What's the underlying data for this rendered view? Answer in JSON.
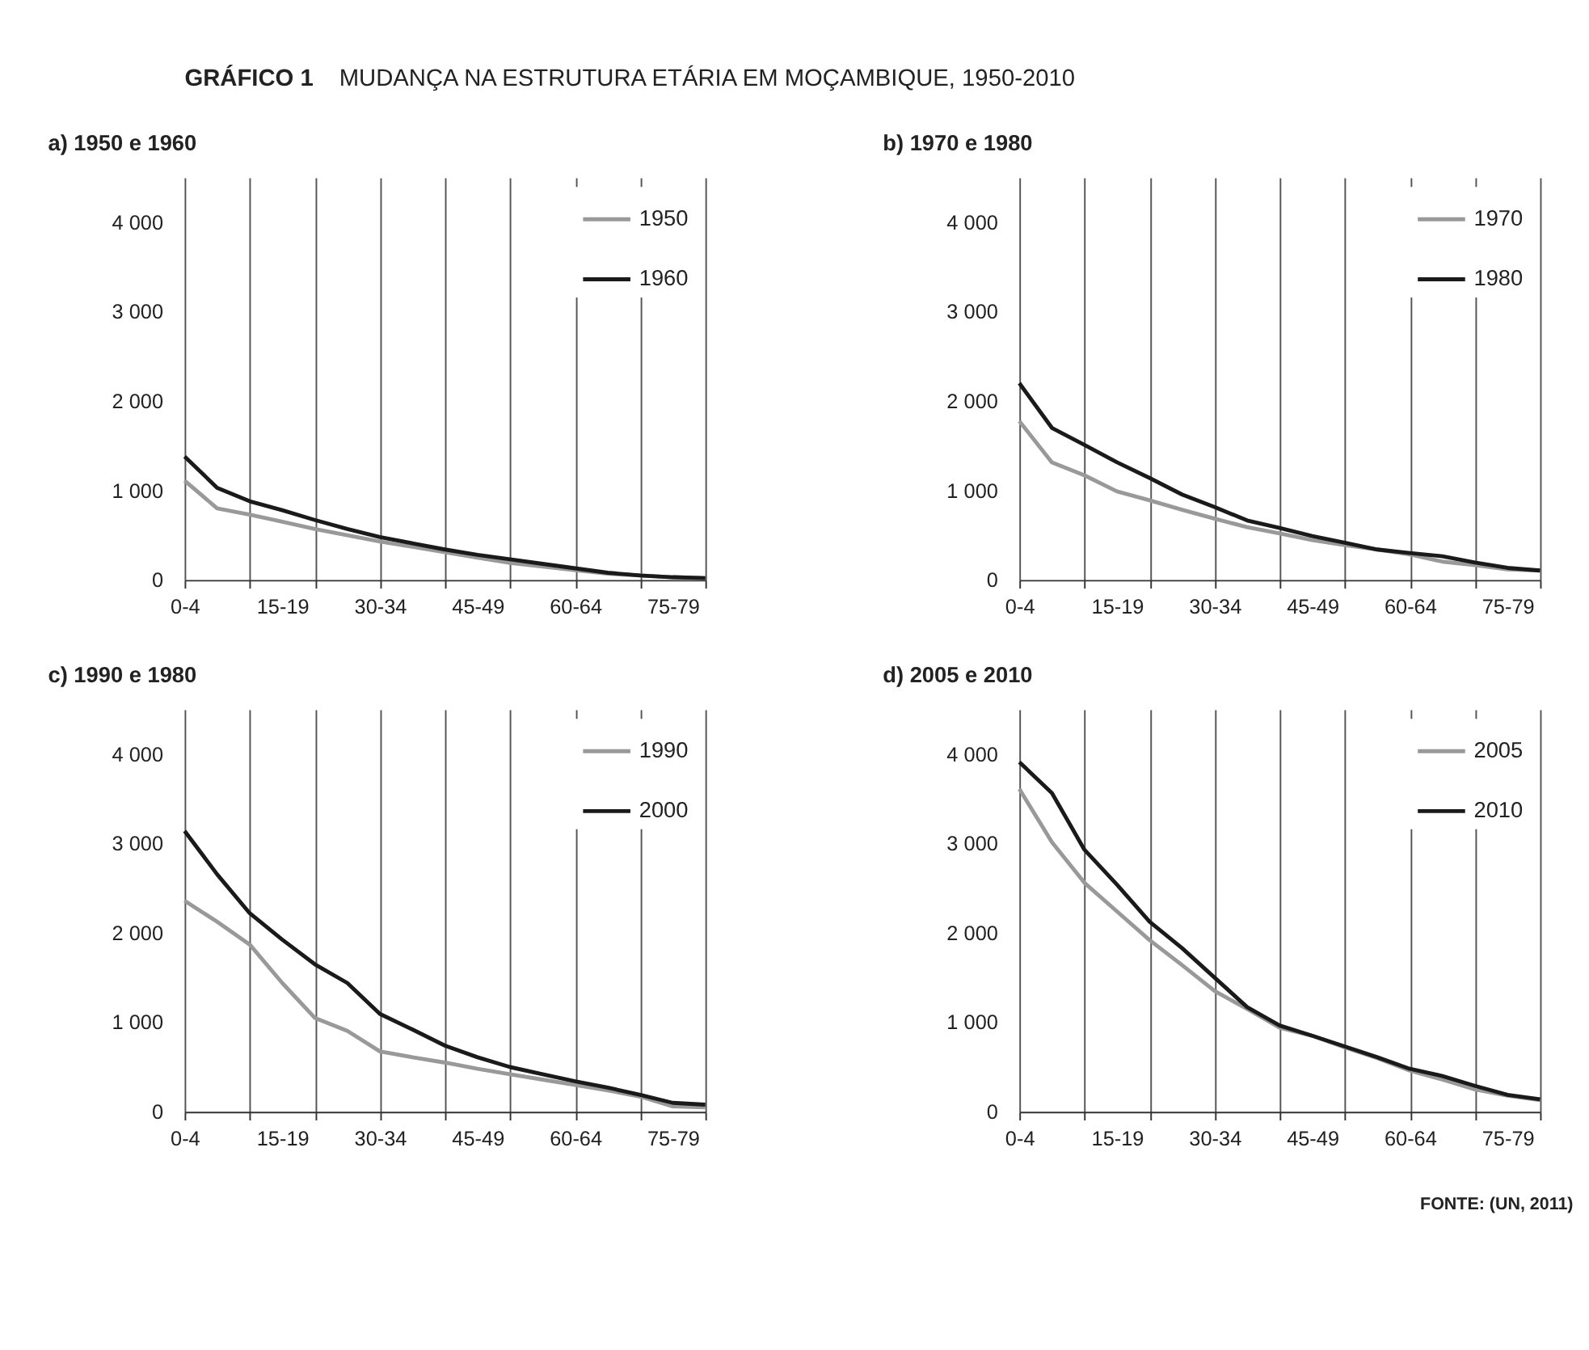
{
  "chart_data": [
    {
      "type": "other",
      "title": "GRÁFICO 1",
      "subtitle": "MUDANÇA NA ESTRUTURA ETÁRIA EM MOÇAMBIQUE, 1950-2010",
      "annotations": [
        "FONTE: (UN, 2011)"
      ]
    },
    {
      "type": "line",
      "title": "a) 1950 e 1960",
      "categories": [
        "0-4",
        null,
        null,
        "15-19",
        null,
        null,
        "30-34",
        null,
        null,
        "45-49",
        null,
        null,
        "60-64",
        null,
        null,
        "75-79",
        null
      ],
      "ylim": [
        0,
        4500
      ],
      "yticks": [
        0,
        {
          "value": 1000,
          "label": "1 000"
        },
        {
          "value": 2000,
          "label": "2 000"
        },
        {
          "value": 3000,
          "label": "3 000"
        },
        {
          "value": 4000,
          "label": "4 000"
        }
      ],
      "grid": "x",
      "legend": "top right",
      "line_style": "solid",
      "series": [
        {
          "name": "1950",
          "color": "#999999",
          "values": [
            1110,
            800,
            730,
            650,
            570,
            500,
            430,
            370,
            310,
            250,
            190,
            150,
            110,
            70,
            50,
            30,
            20
          ]
        },
        {
          "name": "1960",
          "color": "#1a1a1a",
          "values": [
            1380,
            1030,
            880,
            780,
            670,
            570,
            480,
            410,
            340,
            280,
            230,
            180,
            130,
            80,
            50,
            30,
            20
          ]
        }
      ]
    },
    {
      "type": "line",
      "title": "b) 1970 e 1980",
      "categories": [
        "0-4",
        null,
        null,
        "15-19",
        null,
        null,
        "30-34",
        null,
        null,
        "45-49",
        null,
        null,
        "60-64",
        null,
        null,
        "75-79",
        null
      ],
      "ylim": [
        0,
        4500
      ],
      "yticks": [
        0,
        {
          "value": 1000,
          "label": "1 000"
        },
        {
          "value": 2000,
          "label": "2 000"
        },
        {
          "value": 3000,
          "label": "3 000"
        },
        {
          "value": 4000,
          "label": "4 000"
        }
      ],
      "grid": "x",
      "legend": "top right",
      "line_style": "solid",
      "series": [
        {
          "name": "1970",
          "color": "#999999",
          "values": [
            1775,
            1315,
            1170,
            990,
            890,
            785,
            685,
            590,
            520,
            445,
            390,
            340,
            285,
            205,
            165,
            118,
            105
          ]
        },
        {
          "name": "1980",
          "color": "#1a1a1a",
          "values": [
            2200,
            1700,
            1510,
            1315,
            1140,
            955,
            815,
            665,
            580,
            490,
            415,
            340,
            300,
            265,
            195,
            135,
            105
          ]
        }
      ]
    },
    {
      "type": "line",
      "title": "c) 1990 e 1980",
      "categories": [
        "0-4",
        null,
        null,
        "15-19",
        null,
        null,
        "30-34",
        null,
        null,
        "45-49",
        null,
        null,
        "60-64",
        null,
        null,
        "75-79",
        null
      ],
      "ylim": [
        0,
        4500
      ],
      "yticks": [
        0,
        {
          "value": 1000,
          "label": "1 000"
        },
        {
          "value": 2000,
          "label": "2 000"
        },
        {
          "value": 3000,
          "label": "3 000"
        },
        {
          "value": 4000,
          "label": "4 000"
        }
      ],
      "grid": "x",
      "legend": "top right",
      "line_style": "solid",
      "series": [
        {
          "name": "1990",
          "color": "#999999",
          "values": [
            2360,
            2125,
            1870,
            1440,
            1050,
            905,
            675,
            610,
            550,
            480,
            420,
            360,
            300,
            240,
            170,
            60,
            50
          ]
        },
        {
          "name": "2000",
          "color": "#1a1a1a",
          "values": [
            3140,
            2655,
            2220,
            1925,
            1650,
            1440,
            1095,
            920,
            740,
            610,
            500,
            420,
            340,
            270,
            190,
            100,
            80
          ]
        }
      ]
    },
    {
      "type": "line",
      "title": "d) 2005 e 2010",
      "categories": [
        "0-4",
        null,
        null,
        "15-19",
        null,
        null,
        "30-34",
        null,
        null,
        "45-49",
        null,
        null,
        "60-64",
        null,
        null,
        "75-79",
        null
      ],
      "ylim": [
        0,
        4500
      ],
      "yticks": [
        0,
        {
          "value": 1000,
          "label": "1 000"
        },
        {
          "value": 2000,
          "label": "2 000"
        },
        {
          "value": 3000,
          "label": "3 000"
        },
        {
          "value": 4000,
          "label": "4 000"
        }
      ],
      "grid": "x",
      "legend": "top right",
      "line_style": "solid",
      "series": [
        {
          "name": "2005",
          "color": "#999999",
          "values": [
            3610,
            3015,
            2560,
            2240,
            1920,
            1640,
            1350,
            1150,
            940,
            850,
            720,
            600,
            460,
            360,
            250,
            180,
            130
          ]
        },
        {
          "name": "2010",
          "color": "#1a1a1a",
          "values": [
            3910,
            3565,
            2930,
            2540,
            2125,
            1830,
            1500,
            1170,
            965,
            850,
            730,
            610,
            480,
            400,
            290,
            190,
            140
          ]
        }
      ]
    }
  ]
}
